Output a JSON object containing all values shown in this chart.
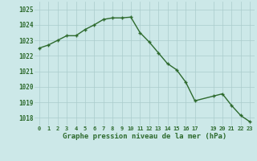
{
  "x": [
    0,
    1,
    2,
    3,
    4,
    5,
    6,
    7,
    8,
    9,
    10,
    11,
    12,
    13,
    14,
    15,
    16,
    17,
    19,
    20,
    21,
    22,
    23
  ],
  "y": [
    1022.5,
    1022.7,
    1023.0,
    1023.3,
    1023.3,
    1023.7,
    1024.0,
    1024.35,
    1024.45,
    1024.45,
    1024.5,
    1023.5,
    1022.9,
    1022.2,
    1021.5,
    1021.1,
    1020.3,
    1019.1,
    1019.4,
    1019.55,
    1018.8,
    1018.15,
    1017.75
  ],
  "xticks": [
    0,
    1,
    2,
    3,
    4,
    5,
    6,
    7,
    8,
    9,
    10,
    11,
    12,
    13,
    14,
    15,
    16,
    17,
    19,
    20,
    21,
    22,
    23
  ],
  "xlabels": [
    "0",
    "1",
    "2",
    "3",
    "4",
    "5",
    "6",
    "7",
    "8",
    "9",
    "10",
    "11",
    "12",
    "13",
    "14",
    "15",
    "16",
    "17",
    "19",
    "20",
    "21",
    "22",
    "23"
  ],
  "ylim": [
    1017.5,
    1025.5
  ],
  "xlim": [
    -0.5,
    23.5
  ],
  "yticks": [
    1018,
    1019,
    1020,
    1021,
    1022,
    1023,
    1024,
    1025
  ],
  "line_color": "#2d6a2d",
  "marker": "+",
  "bg_color": "#cce8e8",
  "grid_color": "#aacccc",
  "xlabel": "Graphe pression niveau de la mer (hPa)",
  "tick_color": "#2d6a2d",
  "fig_bg": "#cce8e8"
}
